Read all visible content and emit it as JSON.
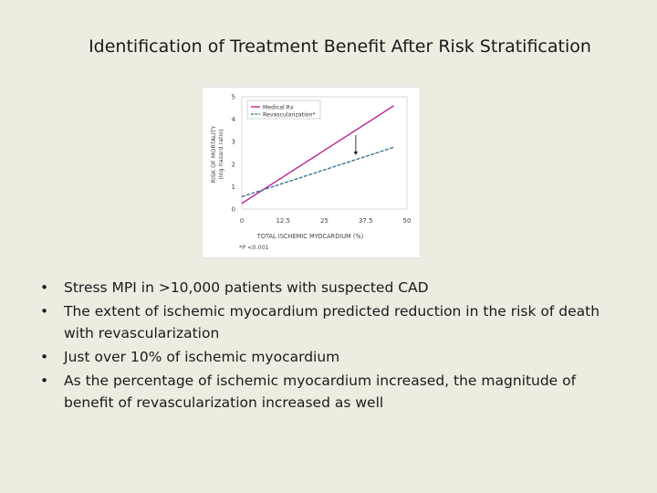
{
  "slide": {
    "title": "Identification of Treatment Benefit After Risk Stratification",
    "bullets": [
      "Stress MPI in >10,000 patients with suspected CAD",
      "The extent of ischemic myocardium predicted reduction in the risk of death with revascularization",
      "Just over 10% of ischemic myocardium",
      "As the percentage of ischemic myocardium increased, the magnitude of benefit of revascularization increased as well"
    ],
    "bullet_glyph": "•"
  },
  "chart_data": {
    "type": "line",
    "xlabel": "TOTAL ISCHEMIC MYOCARDIUM (%)",
    "ylabel": "RISK OF MORTALITY",
    "ylabel_sub": "(log hazard ratio)",
    "xlim": [
      0,
      50
    ],
    "ylim": [
      0,
      5
    ],
    "x_ticks": [
      0,
      12.5,
      25,
      37.5,
      50
    ],
    "x_tick_labels": [
      "0",
      "12.5",
      "25",
      "37.5",
      "50"
    ],
    "y_ticks": [
      0,
      1,
      2,
      3,
      4,
      5
    ],
    "y_tick_labels": [
      "0",
      "1",
      "2",
      "3",
      "4",
      "5"
    ],
    "grid": false,
    "legend_position": "top-left",
    "footnote": "*P <0.001",
    "series": [
      {
        "name": "Medical Rx",
        "color": "#b5178a",
        "dash": "solid",
        "x": [
          0,
          46
        ],
        "y": [
          0.25,
          4.6
        ]
      },
      {
        "name": "Revascularization*",
        "color": "#2e6d8c",
        "dash": "dashed",
        "x": [
          0,
          46
        ],
        "y": [
          0.55,
          2.75
        ]
      }
    ],
    "annotation": {
      "type": "arrow",
      "x": 34.5,
      "y_from": 3.3,
      "y_to": 2.4
    }
  }
}
